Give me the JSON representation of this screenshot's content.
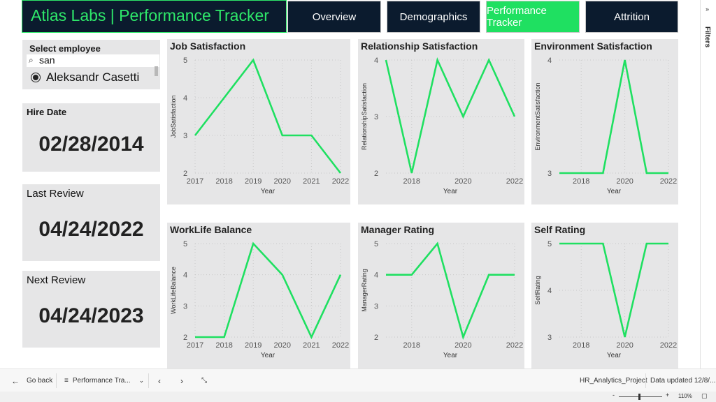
{
  "header": {
    "title": "Atlas Labs | Performance Tracker",
    "tabs": [
      {
        "label": "Overview",
        "active": false
      },
      {
        "label": "Demographics",
        "active": false
      },
      {
        "label": "Performance Tracker",
        "active": true
      },
      {
        "label": "Attrition",
        "active": false
      }
    ]
  },
  "filters_pane": {
    "label": "Filters",
    "chevron": "»"
  },
  "slicer": {
    "title": "Select employee",
    "search_value": "san",
    "search_icon": "⌕",
    "selected_option": "Aleksandr Casetti"
  },
  "cards": {
    "hire_date": {
      "label": "Hire Date",
      "value": "02/28/2014"
    },
    "last_review": {
      "label": "Last Review",
      "value": "04/24/2022"
    },
    "next_review": {
      "label": "Next Review",
      "value": "04/24/2023"
    }
  },
  "colors": {
    "line": "#1fe061",
    "card_bg": "#e6e6e7",
    "header_bg": "#0b1b2e",
    "accent": "#2ee86a"
  },
  "chart_data": [
    {
      "id": "job-satisfaction",
      "type": "line",
      "title": "Job Satisfaction",
      "xlabel": "Year",
      "ylabel": "JobSatisfaction",
      "x": [
        2017,
        2018,
        2019,
        2020,
        2021,
        2022
      ],
      "x_ticks": [
        "2017",
        "2018",
        "2019",
        "2020",
        "2021",
        "2022"
      ],
      "y_ticks": [
        "2",
        "3",
        "4",
        "5"
      ],
      "ylim": [
        2,
        5
      ],
      "values": [
        3,
        4,
        5,
        3,
        3,
        2
      ]
    },
    {
      "id": "relationship-satisfaction",
      "type": "line",
      "title": "Relationship Satisfaction",
      "xlabel": "Year",
      "ylabel": "RelationshipSatisfaction",
      "x": [
        2017,
        2018,
        2019,
        2020,
        2021,
        2022
      ],
      "x_ticks": [
        "2018",
        "2020",
        "2022"
      ],
      "x_tick_values": [
        2018,
        2020,
        2022
      ],
      "y_ticks": [
        "2",
        "3",
        "4"
      ],
      "ylim": [
        2,
        4
      ],
      "values": [
        4,
        2,
        4,
        3,
        4,
        3
      ]
    },
    {
      "id": "environment-satisfaction",
      "type": "line",
      "title": "Environment Satisfaction",
      "xlabel": "Year",
      "ylabel": "EnvironmentSatisfaction",
      "x": [
        2017,
        2018,
        2019,
        2020,
        2021,
        2022
      ],
      "x_ticks": [
        "2018",
        "2020",
        "2022"
      ],
      "x_tick_values": [
        2018,
        2020,
        2022
      ],
      "y_ticks": [
        "3",
        "4"
      ],
      "ylim": [
        3,
        4
      ],
      "values": [
        3,
        3,
        3,
        4,
        3,
        3
      ]
    },
    {
      "id": "worklife-balance",
      "type": "line",
      "title": "WorkLife Balance",
      "xlabel": "Year",
      "ylabel": "WorkLifeBalance",
      "x": [
        2017,
        2018,
        2019,
        2020,
        2021,
        2022
      ],
      "x_ticks": [
        "2017",
        "2018",
        "2019",
        "2020",
        "2021",
        "2022"
      ],
      "y_ticks": [
        "2",
        "3",
        "4",
        "5"
      ],
      "ylim": [
        2,
        5
      ],
      "values": [
        2,
        2,
        5,
        4,
        2,
        4
      ]
    },
    {
      "id": "manager-rating",
      "type": "line",
      "title": "Manager Rating",
      "xlabel": "Year",
      "ylabel": "ManagerRating",
      "x": [
        2017,
        2018,
        2019,
        2020,
        2021,
        2022
      ],
      "x_ticks": [
        "2018",
        "2020",
        "2022"
      ],
      "x_tick_values": [
        2018,
        2020,
        2022
      ],
      "y_ticks": [
        "2",
        "3",
        "4",
        "5"
      ],
      "ylim": [
        2,
        5
      ],
      "values": [
        4,
        4,
        5,
        2,
        4,
        4
      ]
    },
    {
      "id": "self-rating",
      "type": "line",
      "title": "Self Rating",
      "xlabel": "Year",
      "ylabel": "SelfRating",
      "x": [
        2017,
        2018,
        2019,
        2020,
        2021,
        2022
      ],
      "x_ticks": [
        "2018",
        "2020",
        "2022"
      ],
      "x_tick_values": [
        2018,
        2020,
        2022
      ],
      "y_ticks": [
        "3",
        "4",
        "5"
      ],
      "ylim": [
        3,
        5
      ],
      "values": [
        5,
        5,
        5,
        3,
        5,
        5
      ]
    }
  ],
  "bottom_bar": {
    "back_label": "Go back",
    "page_selector": "Performance Tra...",
    "report_name": "HR_Analytics_Project",
    "data_updated": "Data updated 12/8/...",
    "zoom": "110%"
  }
}
